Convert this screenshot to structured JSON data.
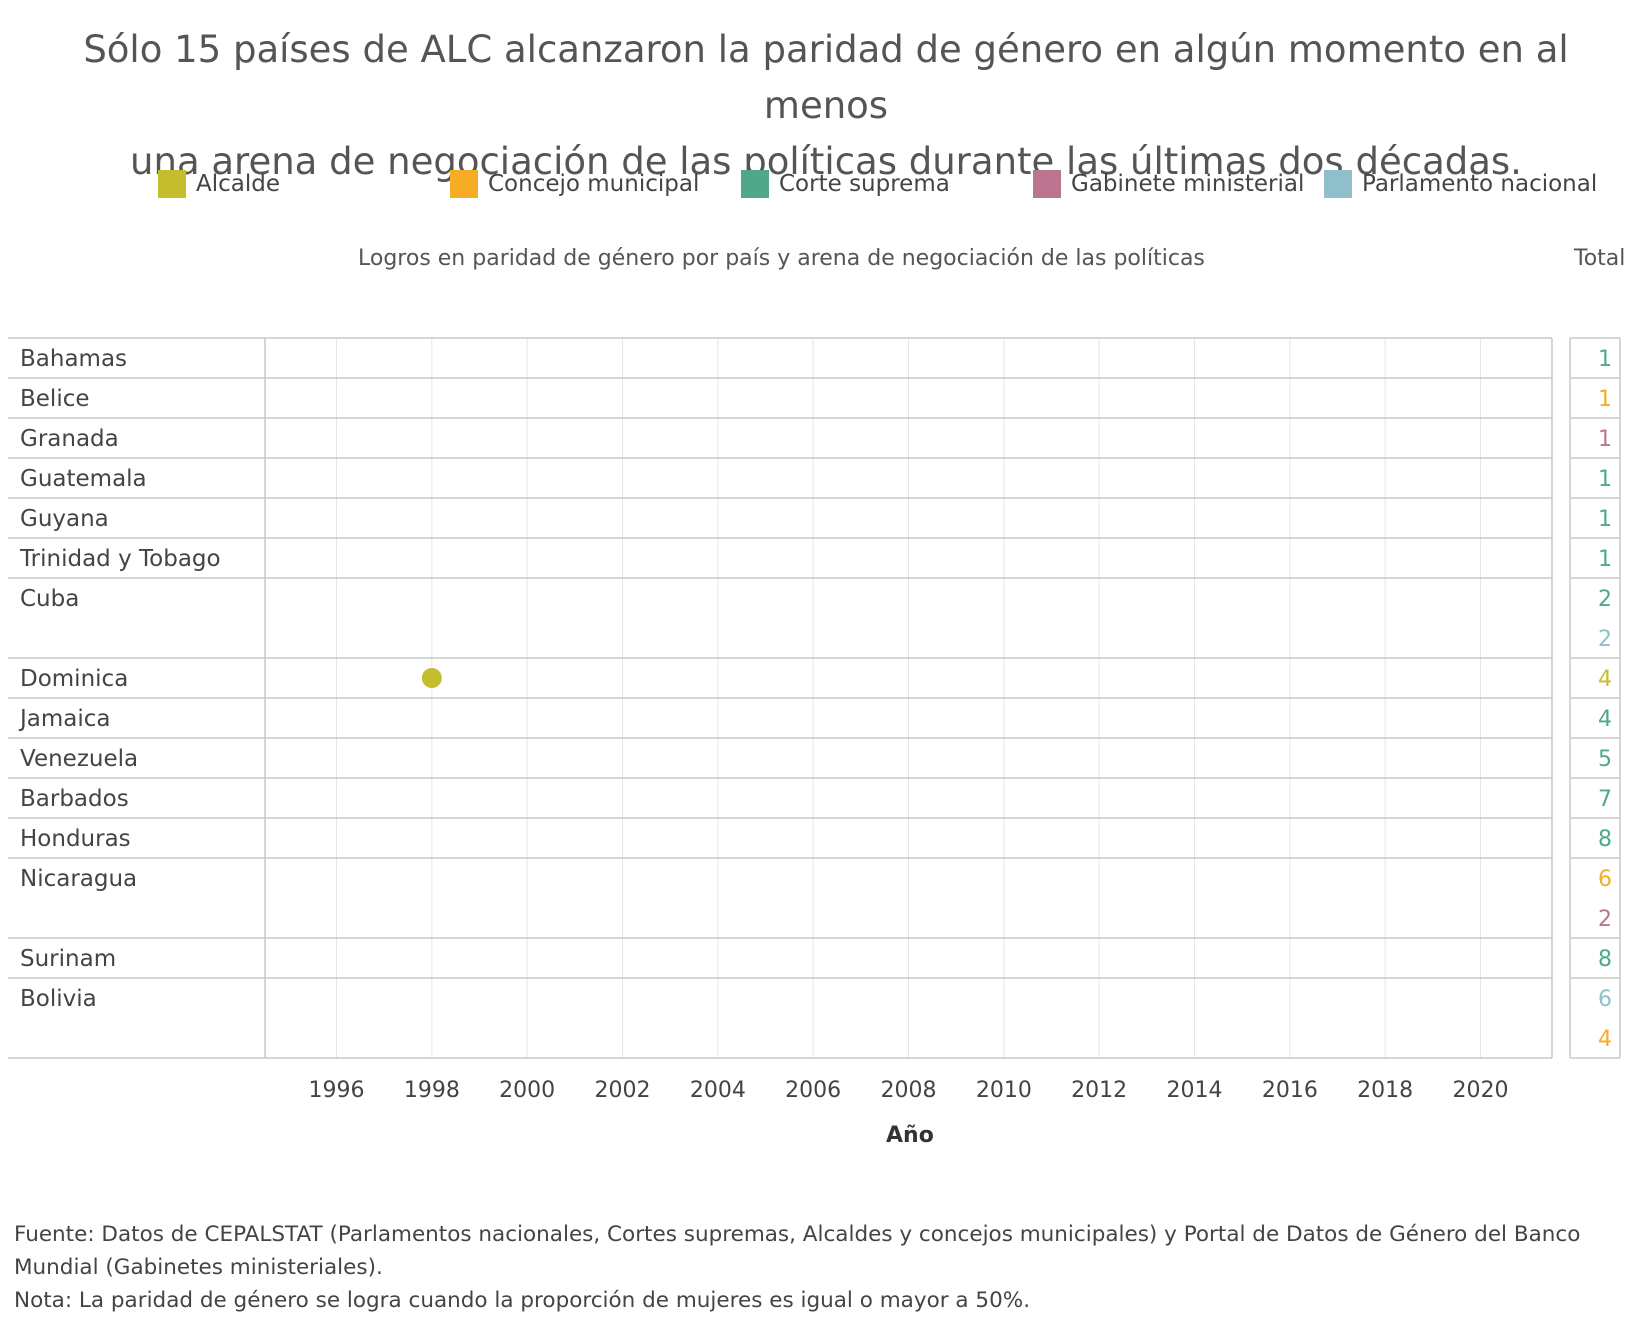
{
  "title_line1": "Sólo 15 países de ALC alcanzaron la paridad de género en algún momento en al menos",
  "title_line2": "una arena de negociación de las políticas durante las últimas dos décadas.",
  "legend": [
    {
      "label": "Alcalde",
      "color": "#c4be2f"
    },
    {
      "label": "Concejo municipal",
      "color": "#f8ab24"
    },
    {
      "label": "Corte suprema",
      "color": "#4fa88a"
    },
    {
      "label": "Gabinete ministerial",
      "color": "#bb7591"
    },
    {
      "label": "Parlamento nacional",
      "color": "#8fc0cb"
    }
  ],
  "subtitle": "Logros en paridad de género por país y arena de negociación de las políticas",
  "total_header": "Total",
  "xlabel": "Año",
  "footnote_source": "Fuente: Datos de CEPALSTAT (Parlamentos nacionales, Cortes supremas, Alcaldes y concejos municipales) y Portal de Datos de Género del Banco Mundial (Gabinetes ministeriales).",
  "footnote_note": "Nota: La paridad de género se logra cuando la proporción de mujeres es igual o mayor a 50%.",
  "chart_data": {
    "type": "scatter",
    "xlabel": "Año",
    "x_ticks": [
      1996,
      1998,
      2000,
      2002,
      2004,
      2006,
      2008,
      2010,
      2012,
      2014,
      2016,
      2018,
      2020
    ],
    "xlim": [
      1994.5,
      2021.5
    ],
    "grid": true,
    "rows": [
      {
        "country": "Bahamas",
        "totals": [
          {
            "value": 1,
            "arena": "Corte suprema"
          }
        ]
      },
      {
        "country": "Belice",
        "totals": [
          {
            "value": 1,
            "arena": "Concejo municipal"
          }
        ]
      },
      {
        "country": "Granada",
        "totals": [
          {
            "value": 1,
            "arena": "Gabinete ministerial"
          }
        ]
      },
      {
        "country": "Guatemala",
        "totals": [
          {
            "value": 1,
            "arena": "Corte suprema"
          }
        ]
      },
      {
        "country": "Guyana",
        "totals": [
          {
            "value": 1,
            "arena": "Corte suprema"
          }
        ]
      },
      {
        "country": "Trinidad y Tobago",
        "totals": [
          {
            "value": 1,
            "arena": "Corte suprema"
          }
        ]
      },
      {
        "country": "Cuba",
        "totals": [
          {
            "value": 2,
            "arena": "Corte suprema"
          },
          {
            "value": 2,
            "arena": "Parlamento nacional"
          }
        ]
      },
      {
        "country": "Dominica",
        "totals": [
          {
            "value": 4,
            "arena": "Alcalde"
          }
        ]
      },
      {
        "country": "Jamaica",
        "totals": [
          {
            "value": 4,
            "arena": "Corte suprema"
          }
        ]
      },
      {
        "country": "Venezuela",
        "totals": [
          {
            "value": 5,
            "arena": "Corte suprema"
          }
        ]
      },
      {
        "country": "Barbados",
        "totals": [
          {
            "value": 7,
            "arena": "Corte suprema"
          }
        ]
      },
      {
        "country": "Honduras",
        "totals": [
          {
            "value": 8,
            "arena": "Corte suprema"
          }
        ]
      },
      {
        "country": "Nicaragua",
        "totals": [
          {
            "value": 6,
            "arena": "Concejo municipal"
          },
          {
            "value": 2,
            "arena": "Gabinete ministerial"
          }
        ]
      },
      {
        "country": "Surinam",
        "totals": [
          {
            "value": 8,
            "arena": "Corte suprema"
          }
        ]
      },
      {
        "country": "Bolivia",
        "totals": [
          {
            "value": 6,
            "arena": "Parlamento nacional"
          },
          {
            "value": 4,
            "arena": "Concejo municipal"
          }
        ]
      }
    ],
    "points": [
      {
        "country": "Dominica",
        "year": 1998,
        "arena": "Alcalde"
      }
    ]
  }
}
